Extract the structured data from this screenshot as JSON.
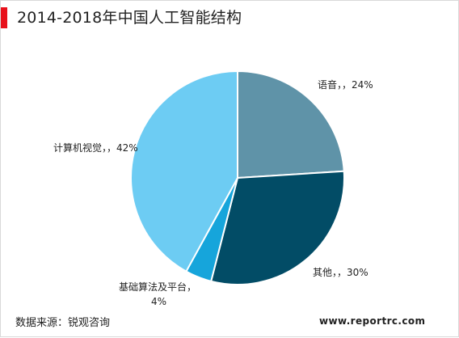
{
  "colors": {
    "accent": "#e8111b",
    "slices": [
      "#5f93a8",
      "#024c66",
      "#16a5db",
      "#6dccf3"
    ],
    "slice_border": "#ffffff",
    "label_text": "#222222"
  },
  "chart_data": {
    "type": "pie",
    "title": "2014-2018年中国人工智能结构",
    "slices": [
      {
        "label": "语音",
        "value": 24,
        "label_text": "语音，，24%"
      },
      {
        "label": "其他",
        "value": 30,
        "label_text": "其他，，30%"
      },
      {
        "label": "基础算法及平台",
        "value": 4,
        "label_text": [
          "基础算法及平台，",
          "4%"
        ]
      },
      {
        "label": "计算机视觉",
        "value": 42,
        "label_text": "计算机视觉，，42%"
      }
    ]
  },
  "footer": {
    "source": "数据来源：锐观咨询",
    "website": "www.reportrc.com"
  }
}
